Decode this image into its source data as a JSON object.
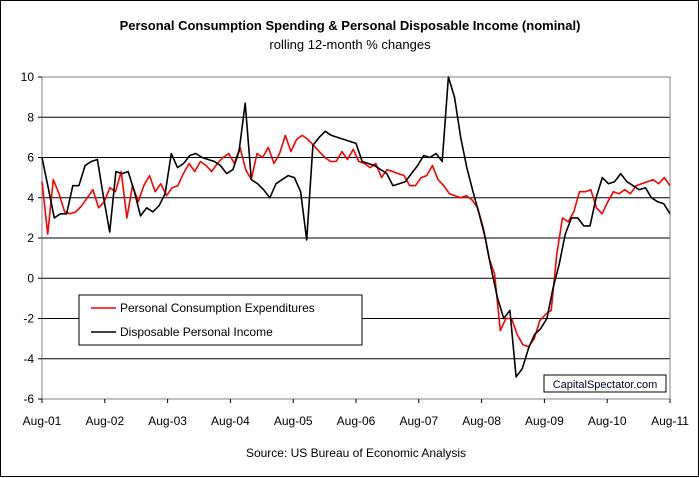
{
  "chart_data": {
    "type": "line",
    "title": "Personal Consumption Spending & Personal Disposable Income (nominal)",
    "subtitle": "rolling 12-month % changes",
    "source": "Source: US Bureau of Economic Analysis",
    "watermark": "CapitalSpectator.com",
    "x_tick_labels": [
      "Aug-01",
      "Aug-02",
      "Aug-03",
      "Aug-04",
      "Aug-05",
      "Aug-06",
      "Aug-07",
      "Aug-08",
      "Aug-09",
      "Aug-10",
      "Aug-11"
    ],
    "y_tick_labels": [
      "10",
      "8",
      "6",
      "4",
      "2",
      "0",
      "-2",
      "-4",
      "-6"
    ],
    "ylim": [
      -6,
      10
    ],
    "y_ticks": [
      10,
      8,
      6,
      4,
      2,
      0,
      -2,
      -4,
      -6
    ],
    "grid": "horizontal",
    "legend_position": "lower-left",
    "x_start": "Aug-01",
    "x_end": "Aug-11",
    "series": [
      {
        "name": "Personal Consumption Expenditures",
        "color": "#ff0000",
        "values": [
          4.8,
          2.2,
          4.9,
          4.2,
          3.3,
          3.2,
          3.3,
          3.6,
          4.0,
          4.4,
          3.5,
          3.8,
          4.5,
          4.3,
          5.3,
          3.0,
          4.6,
          3.8,
          4.6,
          5.1,
          4.3,
          4.7,
          4.1,
          4.5,
          4.6,
          5.2,
          5.7,
          5.3,
          5.8,
          5.6,
          5.3,
          5.7,
          6.0,
          6.2,
          5.7,
          6.5,
          5.4,
          4.9,
          6.2,
          6.0,
          6.5,
          5.7,
          6.2,
          7.1,
          6.3,
          6.9,
          7.1,
          6.9,
          6.6,
          6.3,
          6.0,
          5.8,
          5.8,
          6.3,
          5.9,
          6.4,
          5.8,
          5.7,
          5.5,
          5.7,
          5.0,
          5.4,
          5.3,
          5.2,
          5.1,
          4.6,
          4.6,
          5.0,
          5.1,
          5.6,
          4.9,
          4.6,
          4.2,
          4.1,
          4.0,
          4.1,
          3.9,
          3.5,
          2.5,
          1.0,
          0.2,
          -2.6,
          -2.0,
          -2.0,
          -2.8,
          -3.3,
          -3.4,
          -3.0,
          -2.1,
          -1.8,
          -1.6,
          1.2,
          3.0,
          2.8,
          3.3,
          4.3,
          4.3,
          4.4,
          3.5,
          3.2,
          3.8,
          4.3,
          4.2,
          4.4,
          4.2,
          4.6,
          4.7,
          4.8,
          4.9,
          4.7,
          5.0,
          4.6
        ]
      },
      {
        "name": "Disposable Personal Income",
        "color": "#000000",
        "values": [
          6.0,
          4.5,
          3.0,
          3.2,
          3.2,
          4.6,
          4.6,
          5.6,
          5.8,
          5.9,
          4.0,
          2.3,
          5.3,
          5.2,
          5.3,
          4.3,
          3.1,
          3.5,
          3.3,
          3.6,
          4.2,
          6.2,
          5.5,
          5.7,
          6.1,
          6.2,
          6.0,
          5.9,
          5.8,
          5.6,
          5.2,
          5.4,
          6.3,
          8.7,
          4.9,
          4.7,
          4.4,
          4.0,
          4.7,
          4.9,
          5.1,
          5.0,
          4.3,
          1.9,
          6.6,
          7.0,
          7.3,
          7.1,
          7.0,
          6.9,
          6.8,
          6.7,
          5.8,
          5.7,
          5.6,
          5.4,
          5.2,
          4.6,
          4.7,
          4.8,
          5.2,
          5.6,
          6.1,
          6.0,
          6.2,
          5.8,
          10.0,
          9.0,
          7.0,
          5.5,
          4.3,
          3.2,
          2.0,
          0.4,
          -1.0,
          -2.0,
          -1.6,
          -4.9,
          -4.5,
          -3.5,
          -2.8,
          -2.5,
          -2.0,
          -0.5,
          0.7,
          2.2,
          3.0,
          3.0,
          2.6,
          2.6,
          4.0,
          5.0,
          4.7,
          4.8,
          5.2,
          4.8,
          4.6,
          4.4,
          4.5,
          4.0,
          3.8,
          3.7,
          3.2
        ]
      }
    ]
  }
}
